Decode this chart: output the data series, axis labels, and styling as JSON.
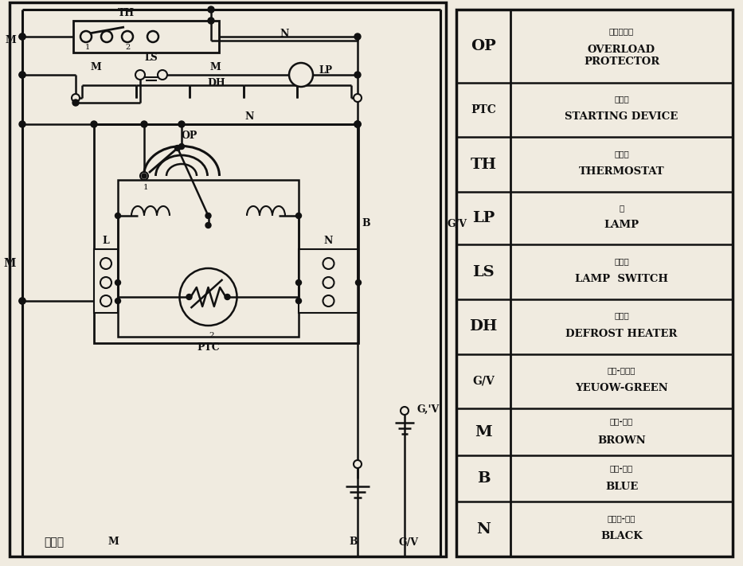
{
  "bg_color": "#f0ebe0",
  "line_color": "#111111",
  "table_entries": [
    {
      "abbr": "OP",
      "cn": "过载保护器",
      "en": "OVERLOAD\nPROTECTOR",
      "rh": 72
    },
    {
      "abbr": "PTC",
      "cn": "起动器",
      "en": "STARTING DEVICE",
      "rh": 54
    },
    {
      "abbr": "TH",
      "cn": "温控器",
      "en": "THERMOSTAT",
      "rh": 54
    },
    {
      "abbr": "LP",
      "cn": "灯",
      "en": "LAMP",
      "rh": 52
    },
    {
      "abbr": "LS",
      "cn": "灯开关",
      "en": "LAMP  SWITCH",
      "rh": 54
    },
    {
      "abbr": "DH",
      "cn": "除霜器",
      "en": "DEFROST HEATER",
      "rh": 54
    },
    {
      "abbr": "G/V",
      "cn": "地线-黄绻色",
      "en": "YEUOW-GREEN",
      "rh": 54
    },
    {
      "abbr": "M",
      "cn": "火线-棕色",
      "en": "BROWN",
      "rh": 46
    },
    {
      "abbr": "B",
      "cn": "零线-蓝色",
      "en": "BLUE",
      "rh": 46
    },
    {
      "abbr": "N",
      "cn": "连接线-黑色",
      "en": "BLACK",
      "rh": 54
    }
  ]
}
